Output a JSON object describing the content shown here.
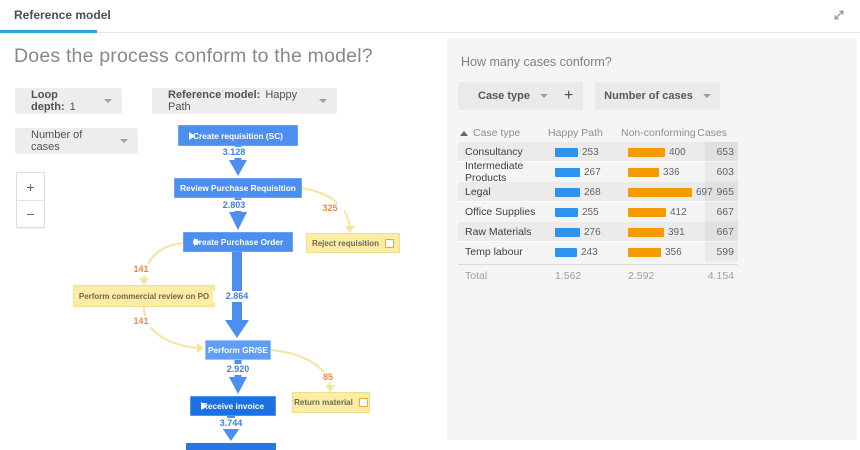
{
  "topbar": {
    "tab": "Reference model"
  },
  "colors": {
    "accent_blue": "#2ca3e8",
    "node_blue": "#4c8ff0",
    "node_dark_blue": "#1b70e2",
    "node_yellow": "#fbeda3",
    "bar_blue": "#2e93f0",
    "bar_orange": "#f59b00",
    "edge_label_blue": "#3f7ee8",
    "edge_label_orange": "#ef8a45"
  },
  "left": {
    "title": "Does the process conform to the model?",
    "controls": {
      "loop_depth_label": "Loop depth:",
      "loop_depth_value": "1",
      "reference_model_label": "Reference model:",
      "reference_model_value": "Happy Path",
      "metric_value": "Number of cases",
      "zoom_in_label": "+",
      "zoom_out_label": "−"
    },
    "flow": {
      "nodes": {
        "create_requisition": "Create requisition (SC)",
        "review_purchase_requisition": "Review Purchase Requisition",
        "create_purchase_order": "Create Purchase Order",
        "reject_requisition": "Reject requisition",
        "perform_commercial_review": "Perform commercial review on PO",
        "perform_gr_se": "Perform GR/SE",
        "receive_invoice": "Receive invoice",
        "return_material": "Return material"
      },
      "edge_labels": {
        "to_review": "3.128",
        "to_create_po": "2.803",
        "to_reject": "325",
        "to_gr_se": "2.864",
        "to_commercial_review": "141",
        "from_commercial_review": "141",
        "to_receive_invoice": "2.920",
        "to_return_material": "85",
        "to_end": "3.744"
      }
    }
  },
  "right": {
    "title": "How many cases conform?",
    "controls": {
      "dimension_value": "Case type",
      "add_label": "+",
      "metric_value": "Number of cases"
    },
    "table": {
      "headers": [
        "Case type",
        "Happy Path",
        "Non-conforming",
        "Cases"
      ],
      "rows": [
        {
          "name": "Consultancy",
          "happy": 253,
          "nonconforming": 400,
          "cases": 653
        },
        {
          "name": "Intermediate Products",
          "happy": 267,
          "nonconforming": 336,
          "cases": 603
        },
        {
          "name": "Legal",
          "happy": 268,
          "nonconforming": 697,
          "cases": 965
        },
        {
          "name": "Office Supplies",
          "happy": 255,
          "nonconforming": 412,
          "cases": 667
        },
        {
          "name": "Raw Materials",
          "happy": 276,
          "nonconforming": 391,
          "cases": 667
        },
        {
          "name": "Temp labour",
          "happy": 243,
          "nonconforming": 356,
          "cases": 599
        }
      ],
      "total": {
        "label": "Total",
        "happy": "1.562",
        "nonconforming": "2.592",
        "cases": "4.154"
      }
    }
  }
}
